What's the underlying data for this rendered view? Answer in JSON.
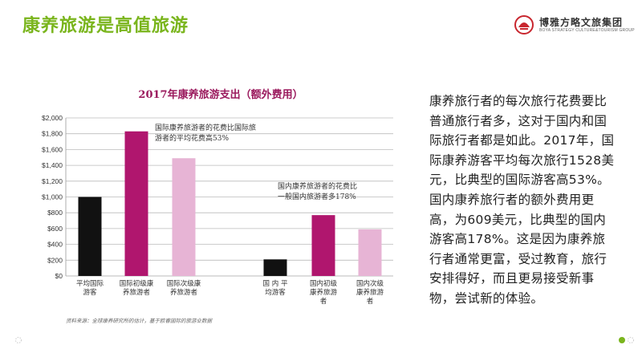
{
  "slide": {
    "title": "康养旅游是高值旅游",
    "body": "康养旅行者的每次旅行花费要比普通旅行者多，这对于国内和国际旅行者都是如此。2017年，国际康养游客平均每次旅行1528美元，比典型的国际游客高53%。国内康养旅行者的额外费用更高，为609美元，比典型的国内游客高178%。这是因为康养旅行者通常更富，受过教育，旅行安排得好，而且更易接受新事物，尝试新的体验。"
  },
  "logo": {
    "name": "博雅方略文旅集团",
    "english": "BOYA STRATEGY CULTURE&TOURISM GROUP"
  },
  "colors": {
    "title_green": "#7ab51d",
    "chart_title": "#9b1b5e",
    "black_bar": "#111111",
    "magenta_bar": "#b0166e",
    "pink_bar": "#e7b4d5",
    "grid": "#bbbbbb",
    "logo_red": "#c8262e"
  },
  "chart_data": {
    "type": "bar",
    "title": "2017年康养旅游支出（额外费用）",
    "ylim": [
      0,
      2000
    ],
    "yticks": [
      0,
      200,
      400,
      600,
      800,
      1000,
      1200,
      1400,
      1600,
      1800,
      2000
    ],
    "ytick_labels": [
      "$0",
      "$200",
      "$400",
      "$600",
      "$800",
      "$1,000",
      "$1,200",
      "$1,400",
      "$1,600",
      "$1,800",
      "$2,000"
    ],
    "grid": true,
    "categories": [
      {
        "label": [
          "平均国际",
          "游客"
        ],
        "value": 1000,
        "color": "#111111"
      },
      {
        "label": [
          "国际初级康",
          "养旅游者"
        ],
        "value": 1830,
        "color": "#b0166e"
      },
      {
        "label": [
          "国际次级康",
          "养旅游者"
        ],
        "value": 1490,
        "color": "#e7b4d5"
      },
      {
        "label": [
          "国 内 平",
          "均游客"
        ],
        "value": 210,
        "color": "#111111"
      },
      {
        "label": [
          "国内初级",
          "康养旅游",
          "者"
        ],
        "value": 770,
        "color": "#b0166e"
      },
      {
        "label": [
          "国内次级",
          "康养旅游",
          "者"
        ],
        "value": 590,
        "color": "#e7b4d5"
      }
    ],
    "annotations": [
      {
        "lines": [
          "国际康养旅游者的花费比国际旅",
          "游者的平均花费高53%"
        ]
      },
      {
        "lines": [
          "国内康养旅游者的花费比",
          "一般国内旅游者多178%"
        ]
      }
    ],
    "source": "资料来源：全球康养研究所的估计，基于欧睿国际的旅游业数据"
  }
}
